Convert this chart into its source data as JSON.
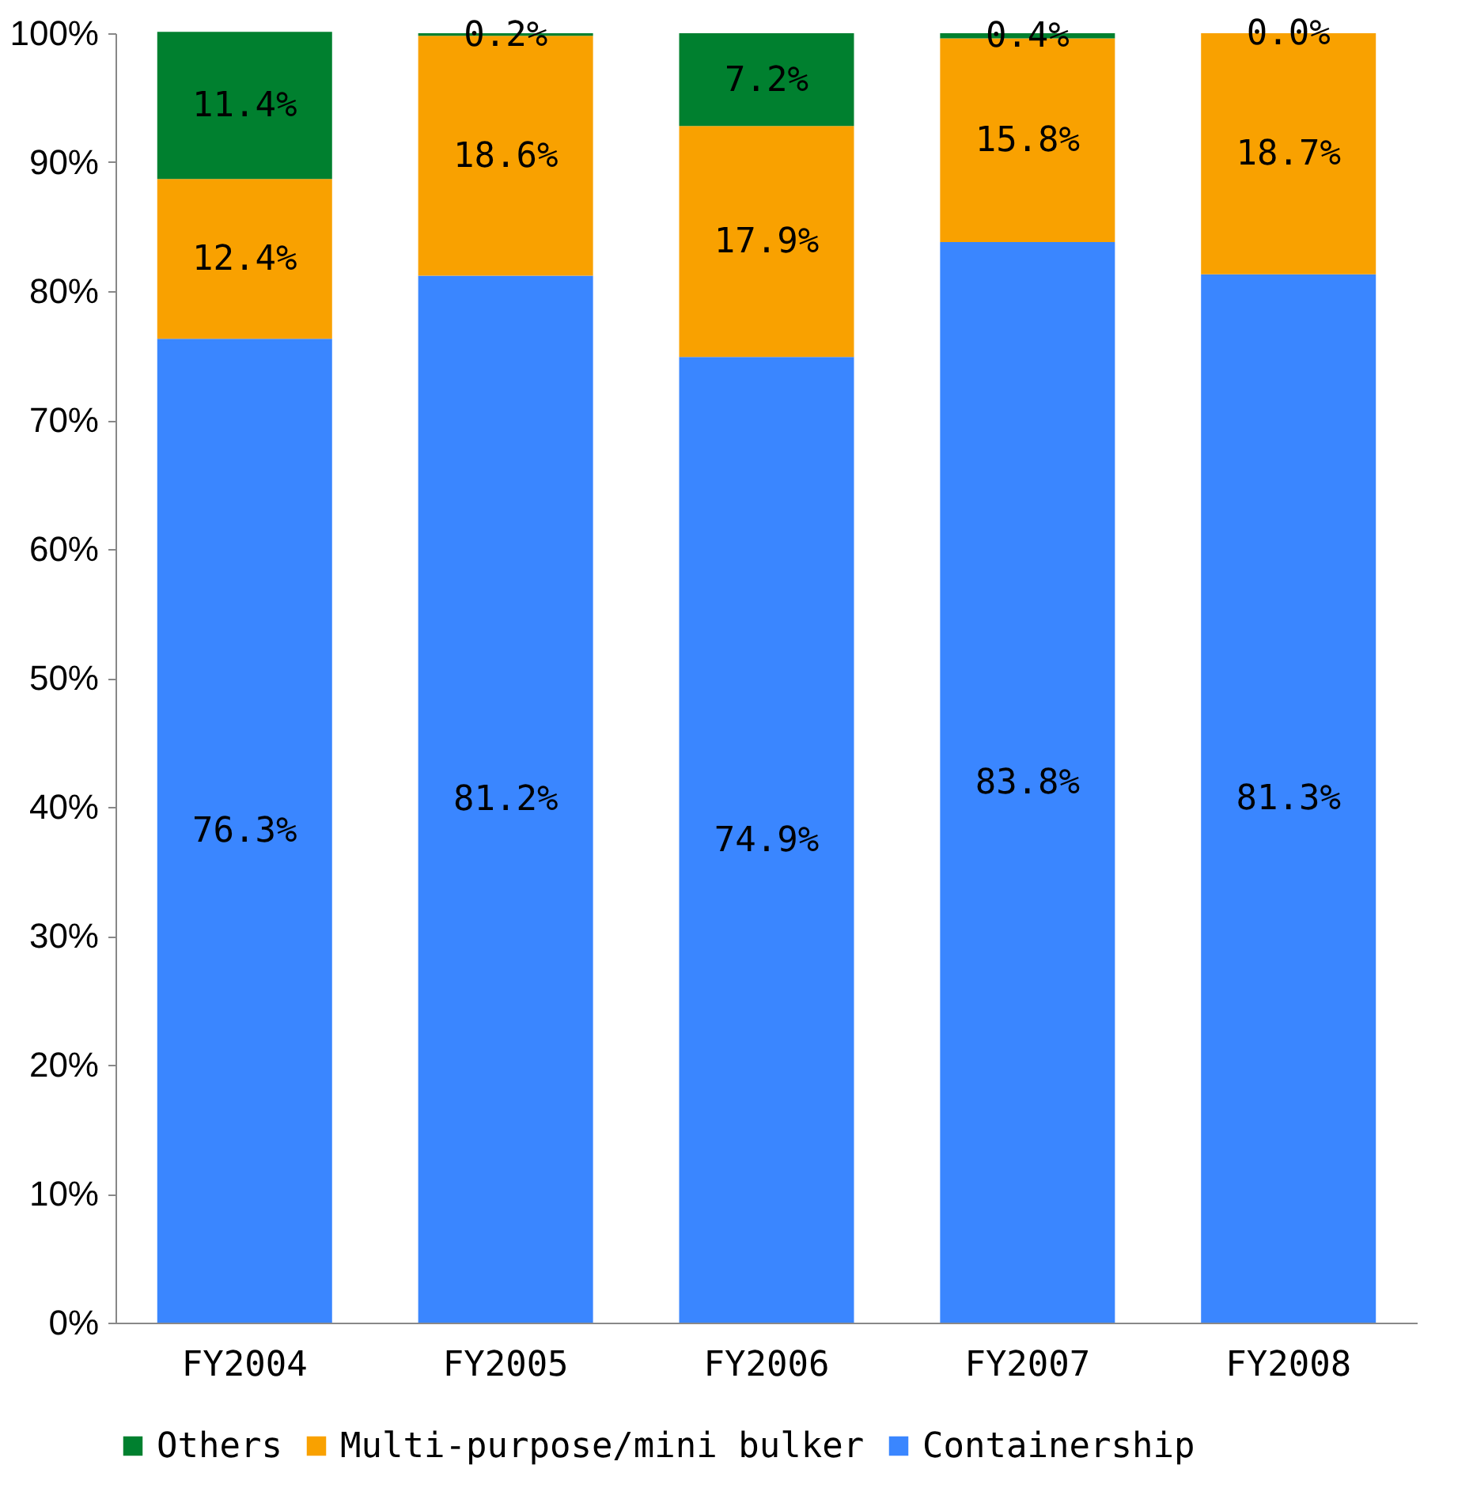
{
  "chart_data": {
    "type": "bar",
    "stacked": true,
    "categories": [
      "FY2004",
      "FY2005",
      "FY2006",
      "FY2007",
      "FY2008"
    ],
    "series": [
      {
        "name": "Containership",
        "color": "#3a86ff",
        "values": [
          76.3,
          81.2,
          74.9,
          83.8,
          81.3
        ],
        "value_labels": [
          "76.3%",
          "81.2%",
          "74.9%",
          "83.8%",
          "81.3%"
        ]
      },
      {
        "name": "Multi-purpose/mini bulker",
        "color": "#f9a100",
        "values": [
          12.4,
          18.6,
          17.9,
          15.8,
          18.7
        ],
        "value_labels": [
          "12.4%",
          "18.6%",
          "17.9%",
          "15.8%",
          "18.7%"
        ]
      },
      {
        "name": "Others",
        "color": "#00802f",
        "values": [
          11.4,
          0.2,
          7.2,
          0.4,
          0.0
        ],
        "value_labels": [
          "11.4%",
          "0.2%",
          "7.2%",
          "0.4%",
          "0.0%"
        ]
      }
    ],
    "ylim": [
      0,
      100
    ],
    "yticks": [
      {
        "value": 0,
        "label": "0%"
      },
      {
        "value": 10,
        "label": "10%"
      },
      {
        "value": 20,
        "label": "20%"
      },
      {
        "value": 30,
        "label": "30%"
      },
      {
        "value": 40,
        "label": "40%"
      },
      {
        "value": 50,
        "label": "50%"
      },
      {
        "value": 60,
        "label": "60%"
      },
      {
        "value": 70,
        "label": "70%"
      },
      {
        "value": 80,
        "label": "80%"
      },
      {
        "value": 90,
        "label": "90%"
      },
      {
        "value": 100,
        "label": "100%"
      }
    ],
    "legend": "bottom"
  }
}
